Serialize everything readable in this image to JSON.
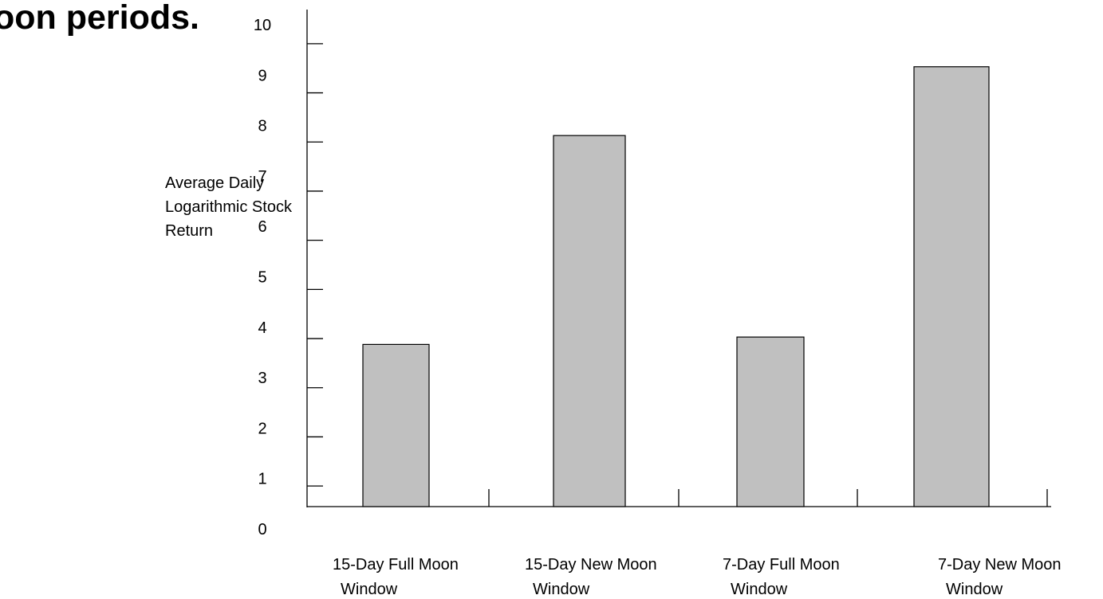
{
  "chart_data": {
    "type": "bar",
    "title": "oon periods.",
    "ylabel": [
      "Average Daily",
      "Logarithmic Stock",
      "Return"
    ],
    "xlabel": "",
    "ylim": [
      0,
      10
    ],
    "yticks": [
      "0",
      "1",
      "2",
      "3",
      "4",
      "5",
      "6",
      "7",
      "8",
      "9",
      "10"
    ],
    "categories": [
      [
        "15-Day Full Moon",
        "Window"
      ],
      [
        "15-Day New Moon",
        "Window"
      ],
      [
        "7-Day Full Moon",
        "Window"
      ],
      [
        "7-Day New Moon",
        "Window"
      ]
    ],
    "values": [
      3.3,
      7.55,
      3.45,
      8.95
    ],
    "grid": false,
    "legend": "none",
    "colors": {
      "bar_fill": "#c0c0c0",
      "bar_stroke": "#000000",
      "axis": "#000000"
    }
  }
}
